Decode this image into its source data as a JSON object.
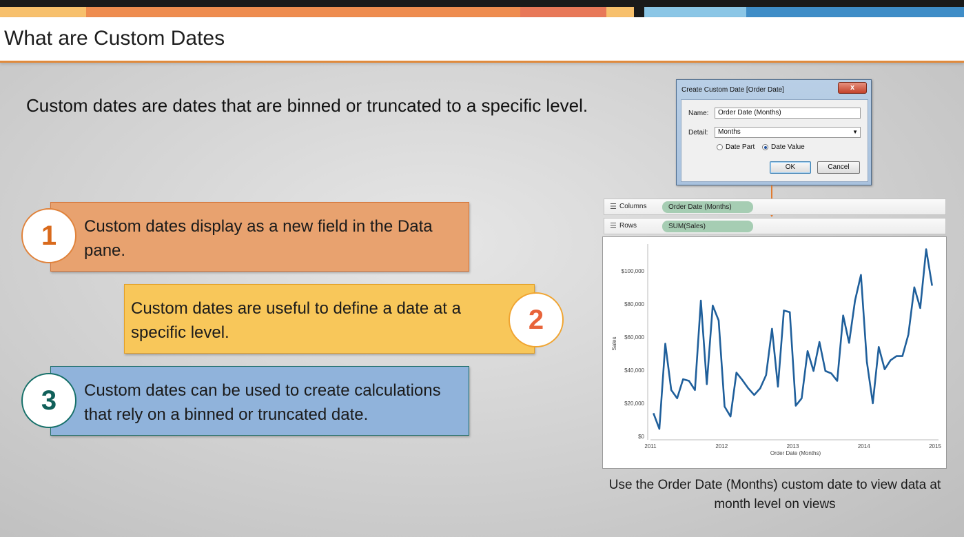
{
  "colors": {
    "stripe_orange": "#ee8c4f",
    "stripe_amber": "#f7c06c",
    "stripe_light_blue": "#8bc6e6",
    "stripe_blue": "#3f8dc7",
    "title_rule": "#e08a3c",
    "callout_1": "#e8a26f",
    "callout_2": "#f8c75a",
    "callout_3": "#90b3db",
    "pill_green": "#a6cdb3",
    "line_blue": "#1f5f9b",
    "arrow": "#e07b30"
  },
  "header": {
    "title": "What are Custom Dates"
  },
  "intro": "Custom dates are dates that are binned or truncated to a specific level.",
  "callouts": [
    {
      "number": "1",
      "text": "Custom dates display as a new field in the Data pane."
    },
    {
      "number": "2",
      "text": "Custom dates are useful to define a date at a specific level."
    },
    {
      "number": "3",
      "text": "Custom dates can be used to create calculations that rely on a binned or truncated date."
    }
  ],
  "dialog": {
    "title": "Create Custom Date [Order Date]",
    "close_icon": "x-icon",
    "close_label": "x",
    "name_label": "Name:",
    "name_value": "Order Date (Months)",
    "detail_label": "Detail:",
    "detail_value": "Months",
    "radio_date_part": "Date Part",
    "radio_date_value": "Date Value",
    "selected_radio": "Date Value",
    "ok_label": "OK",
    "cancel_label": "Cancel"
  },
  "shelves": {
    "columns_label": "Columns",
    "columns_pill": "Order Date (Months)",
    "rows_label": "Rows",
    "rows_pill": "SUM(Sales)"
  },
  "chart_data": {
    "type": "line",
    "xlabel": "Order Date (Months)",
    "ylabel": "Sales",
    "x_ticks": [
      "2011",
      "2012",
      "2013",
      "2014",
      "2015"
    ],
    "xlim": [
      2011,
      2015
    ],
    "y_ticks": [
      "$0",
      "$20,000",
      "$40,000",
      "$60,000",
      "$80,000",
      "$100,000"
    ],
    "ylim": [
      0,
      112000
    ],
    "grid": false,
    "series": [
      {
        "x_start": "2011-01",
        "interval": "month",
        "values": [
          14000,
          4500,
          56000,
          28000,
          23000,
          34500,
          33500,
          28000,
          82000,
          31500,
          79000,
          70000,
          18000,
          12000,
          38500,
          34000,
          29000,
          25000,
          29000,
          37000,
          65000,
          30000,
          76000,
          75000,
          18500,
          23000,
          51500,
          39500,
          57000,
          39500,
          38000,
          33500,
          73000,
          56500,
          82000,
          97500,
          45000,
          20000,
          54000,
          40500,
          46000,
          48500,
          48500,
          61500,
          90000,
          77500,
          113000,
          91000
        ]
      }
    ]
  },
  "caption": "Use the Order Date (Months) custom date to view data at month level on views"
}
